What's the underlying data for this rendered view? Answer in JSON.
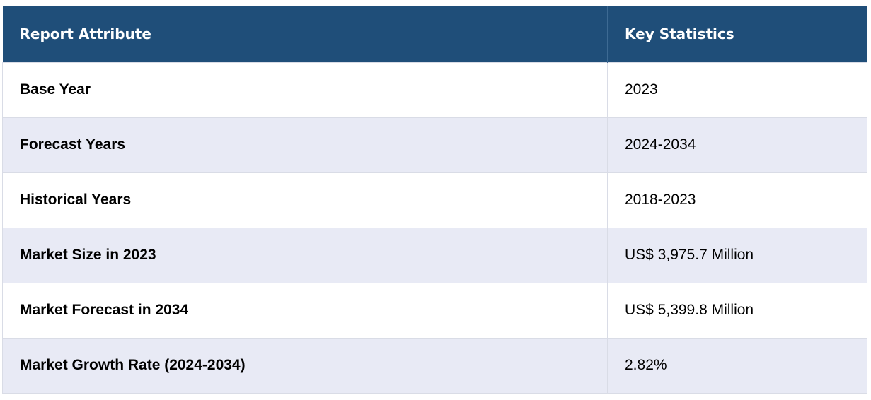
{
  "table": {
    "headers": [
      "Report Attribute",
      "Key Statistics"
    ],
    "rows": [
      {
        "attribute": "Base Year",
        "value": "2023"
      },
      {
        "attribute": "Forecast Years",
        "value": "2024-2034"
      },
      {
        "attribute": "Historical Years",
        "value": "2018-2023"
      },
      {
        "attribute": "Market Size in 2023",
        "value": "US$ 3,975.7 Million"
      },
      {
        "attribute": "Market Forecast in 2034",
        "value": "US$ 5,399.8 Million"
      },
      {
        "attribute": "Market Growth Rate (2024-2034)",
        "value": "2.82%"
      }
    ]
  },
  "colors": {
    "header_background": "#1f4e79",
    "header_text": "#ffffff",
    "stripe_background": "#e8eaf5",
    "row_background": "#ffffff"
  }
}
